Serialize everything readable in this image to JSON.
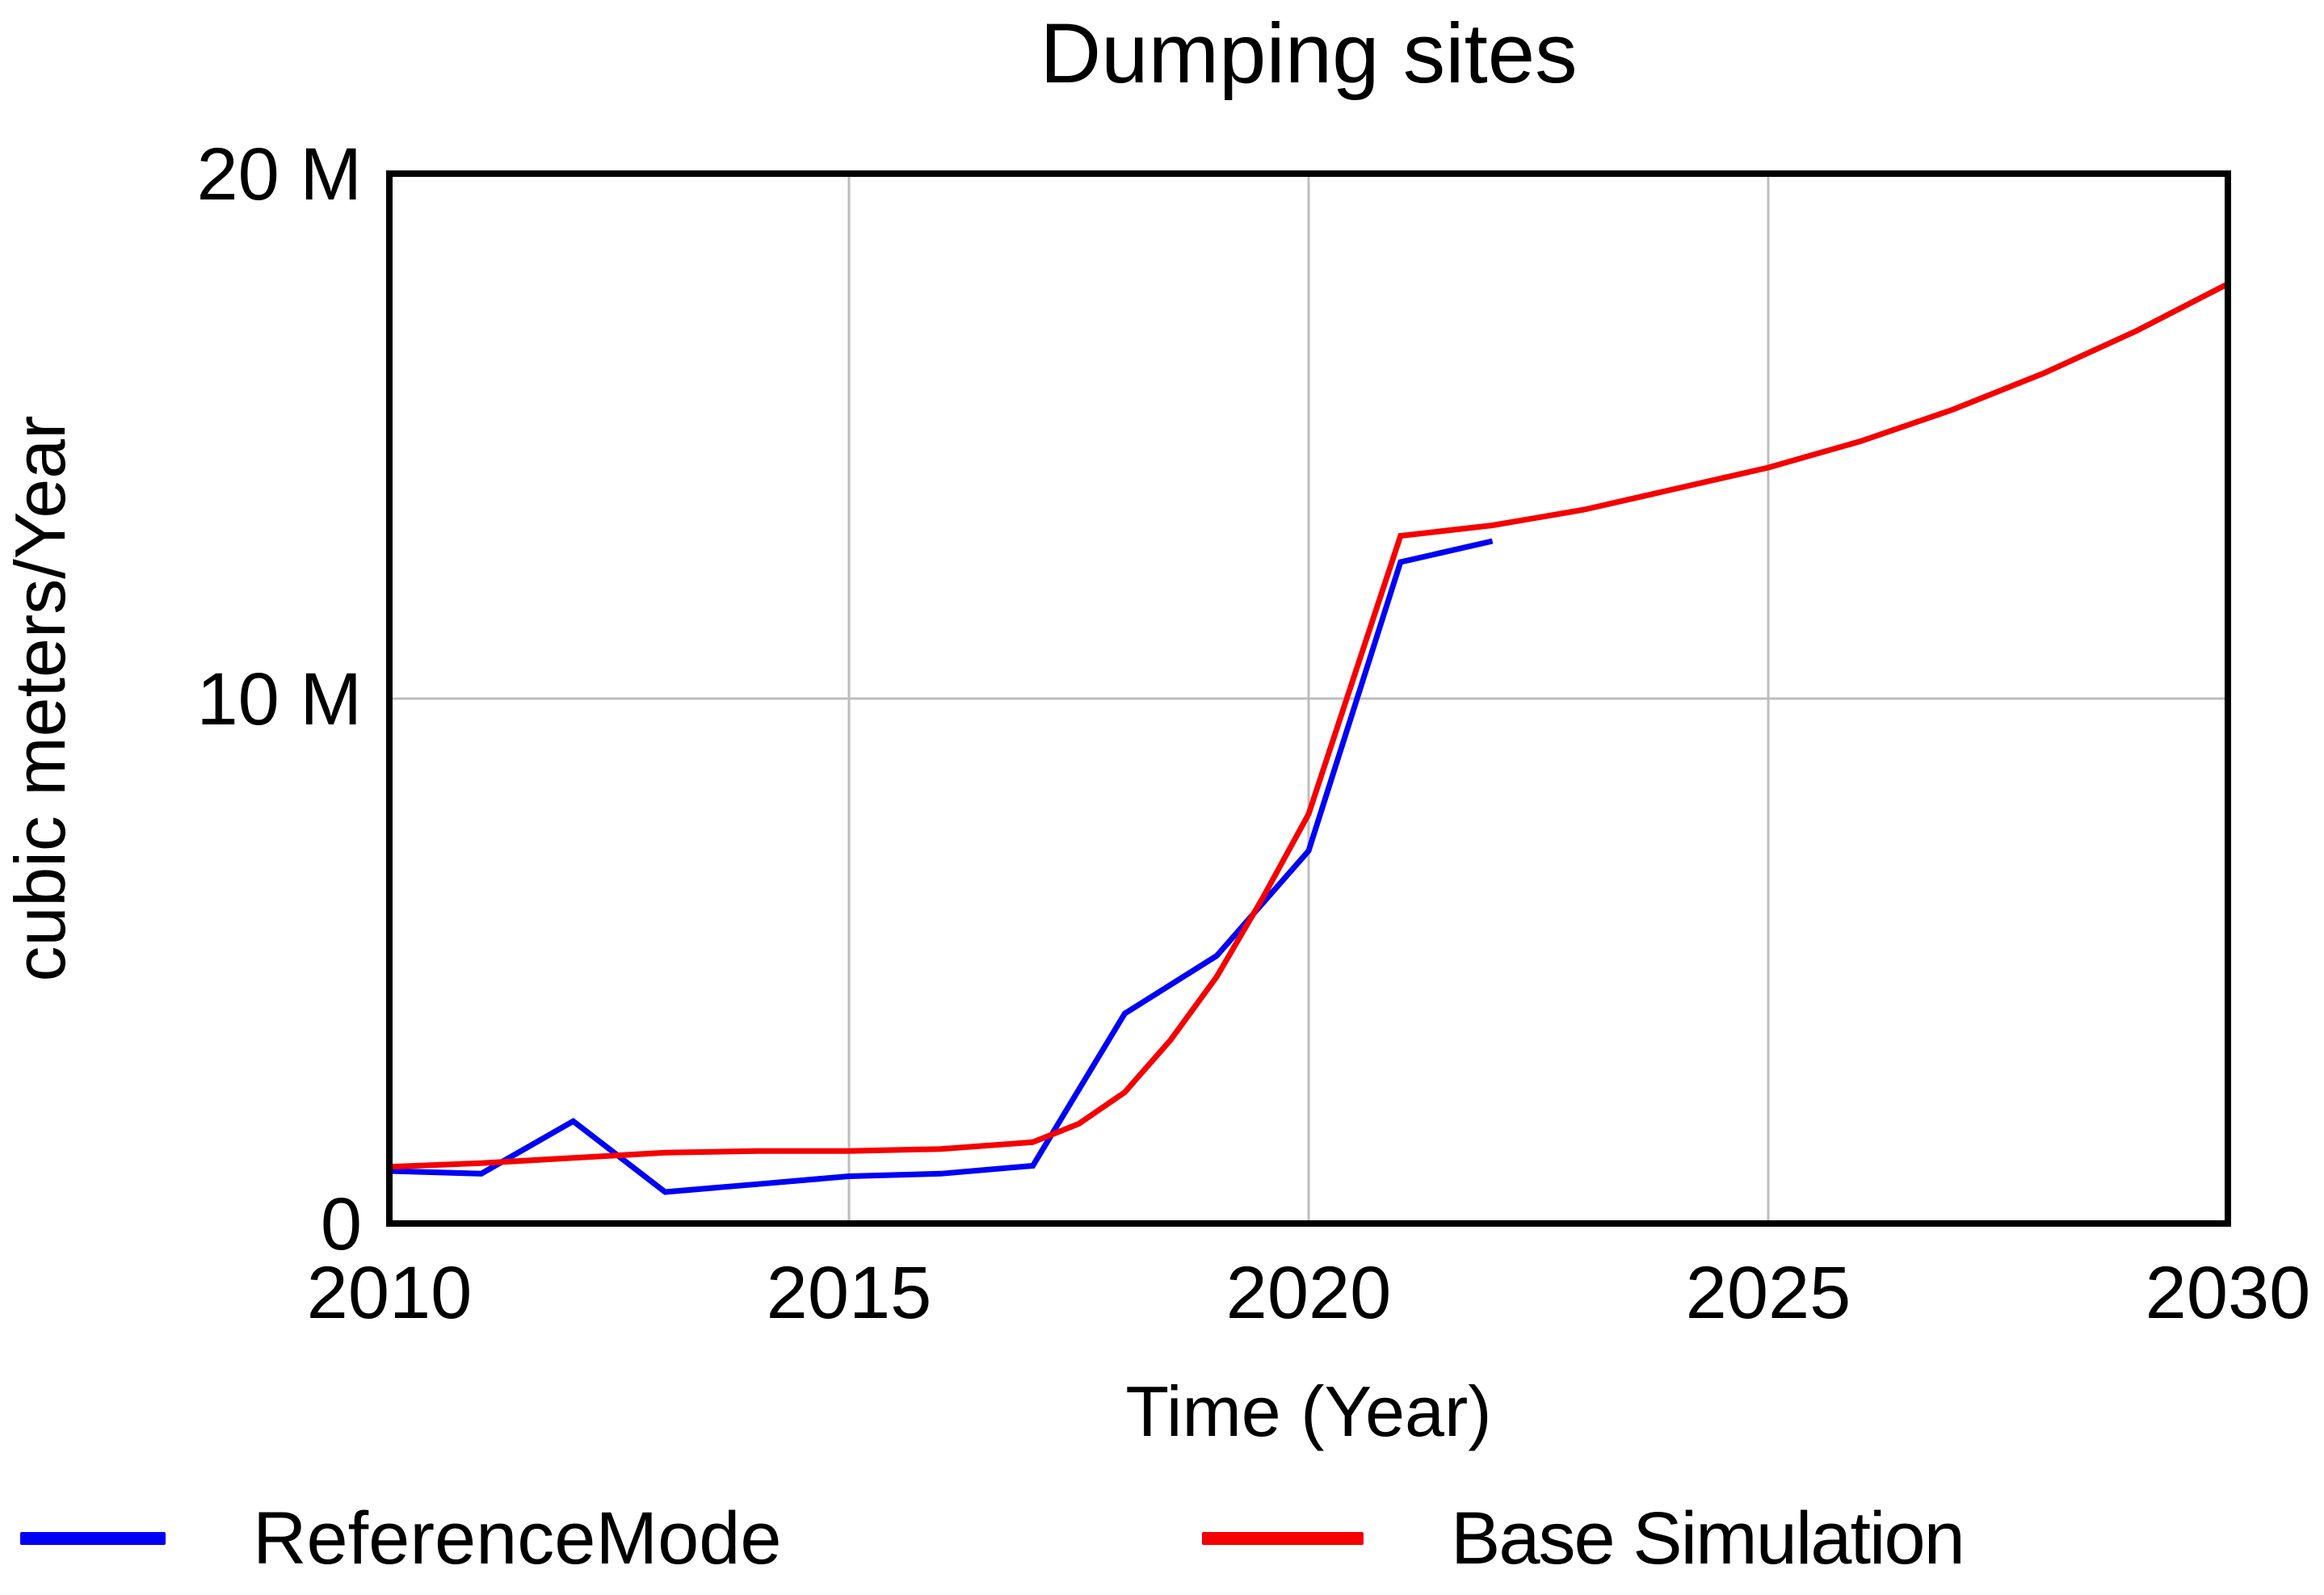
{
  "chart_data": {
    "type": "line",
    "title": "Dumping sites",
    "xlabel": "Time (Year)",
    "ylabel": "cubic meters/Year",
    "xlim": [
      2010,
      2030
    ],
    "ylim_M": [
      0,
      20
    ],
    "grid": true,
    "legend_position": "bottom",
    "units_note": "M = millions of cubic meters per year",
    "y_ticks": [
      {
        "value_M": 0,
        "label": "0"
      },
      {
        "value_M": 10,
        "label": "10 M"
      },
      {
        "value_M": 20,
        "label": "20 M"
      }
    ],
    "x_ticks": [
      {
        "value": 2010,
        "label": "2010"
      },
      {
        "value": 2015,
        "label": "2015"
      },
      {
        "value": 2020,
        "label": "2020"
      },
      {
        "value": 2025,
        "label": "2025"
      },
      {
        "value": 2030,
        "label": "2030"
      }
    ],
    "series": [
      {
        "name": "ReferenceMode",
        "color": "#0000f5",
        "x": [
          2010,
          2011,
          2012,
          2013,
          2014,
          2015,
          2016,
          2017,
          2018,
          2019,
          2020,
          2021,
          2022
        ],
        "values_M": [
          1.0,
          0.95,
          1.95,
          0.6,
          0.75,
          0.9,
          0.95,
          1.1,
          4.0,
          5.1,
          7.1,
          12.6,
          13.0
        ]
      },
      {
        "name": "Base Simulation",
        "color": "#f50000",
        "x": [
          2010,
          2011,
          2012,
          2013,
          2014,
          2015,
          2016,
          2017,
          2017.5,
          2018,
          2018.5,
          2019,
          2019.5,
          2020,
          2021,
          2022,
          2023,
          2024,
          2025,
          2026,
          2027,
          2028,
          2029,
          2030
        ],
        "values_M": [
          1.08,
          1.15,
          1.25,
          1.35,
          1.38,
          1.38,
          1.42,
          1.55,
          1.9,
          2.5,
          3.5,
          4.7,
          6.2,
          7.8,
          13.1,
          13.3,
          13.6,
          14.0,
          14.4,
          14.9,
          15.5,
          16.2,
          17.0,
          17.9
        ]
      }
    ]
  },
  "legend": {
    "items": [
      {
        "label": "ReferenceMode",
        "color": "#0000f5"
      },
      {
        "label": "Base Simulation",
        "color": "#f50000"
      }
    ]
  },
  "colors": {
    "gridline": "#bdbdbd",
    "axis_border": "#000000",
    "text": "#000000",
    "background": "#ffffff"
  }
}
